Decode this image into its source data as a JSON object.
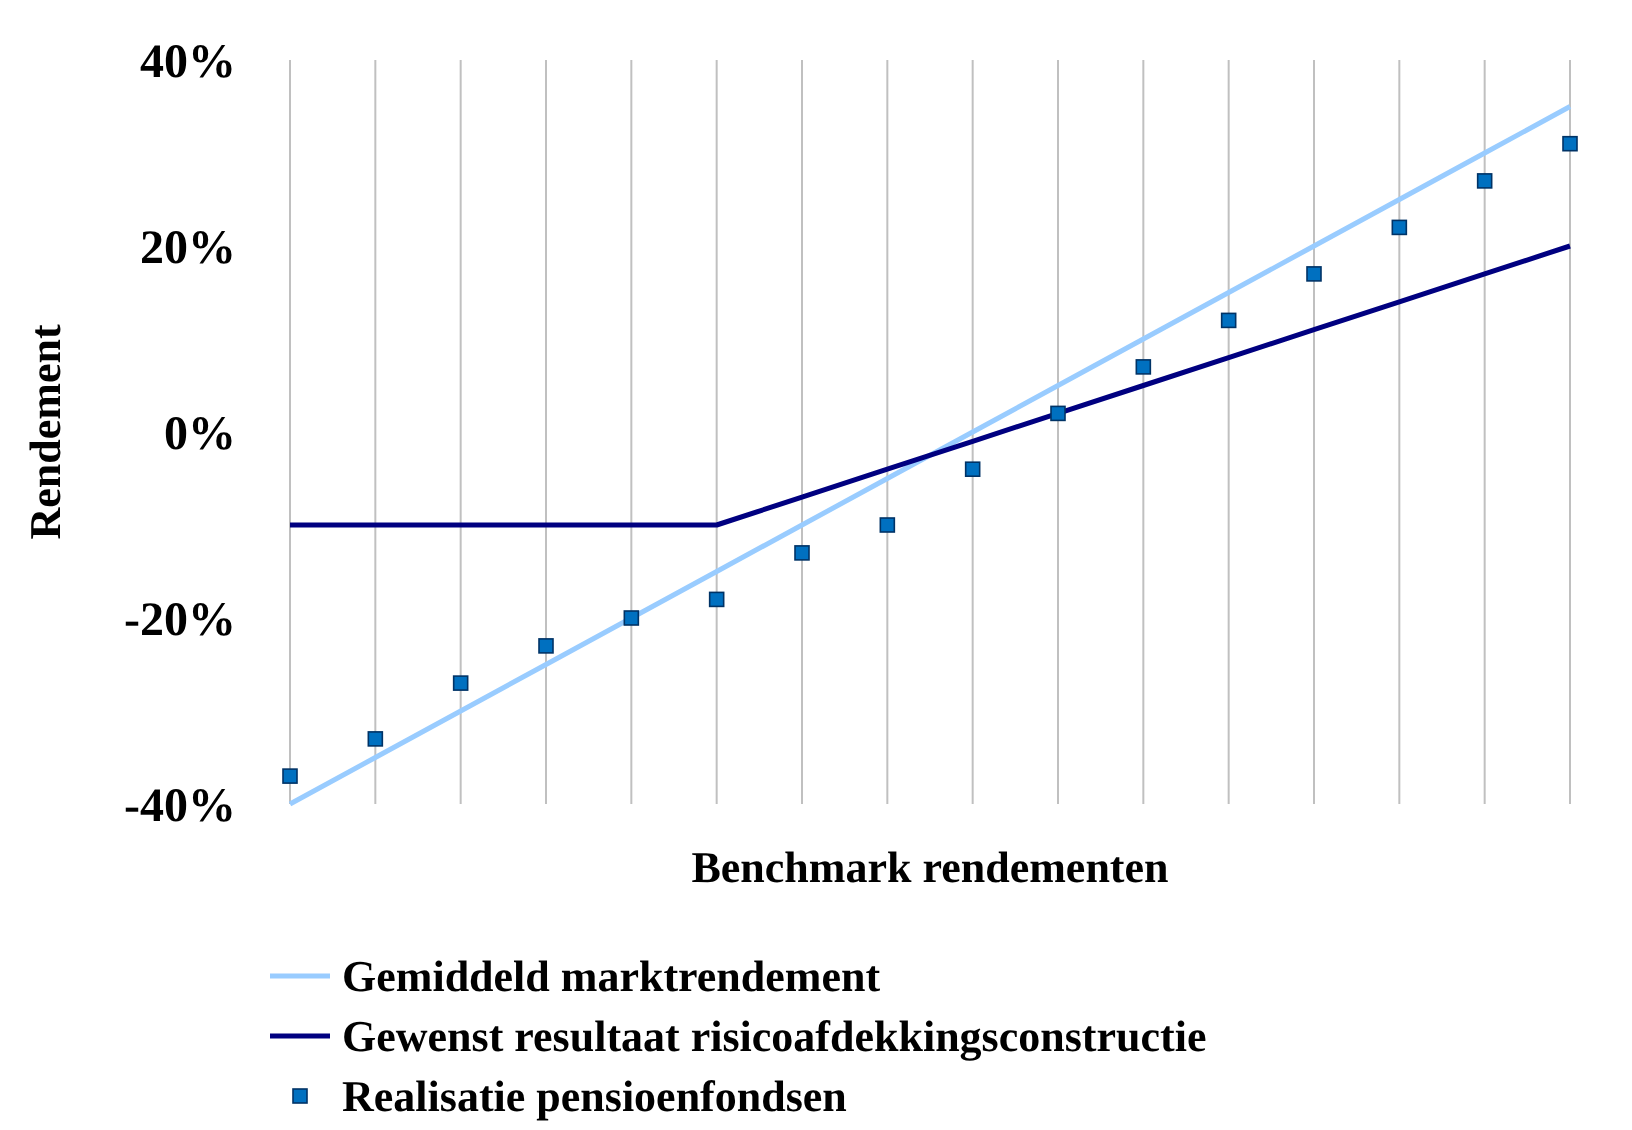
{
  "chart_data": {
    "type": "line",
    "xlabel": "Benchmark rendementen",
    "ylabel": "Rendement",
    "categories": [
      null,
      null,
      null,
      null,
      null,
      null,
      null,
      null,
      null,
      null,
      null,
      null,
      null,
      null,
      null,
      null
    ],
    "series": [
      {
        "name": "Gemiddeld marktrendement",
        "marker": "none",
        "color": "#99ccff",
        "values": [
          -40,
          -35,
          -30,
          -25,
          -20,
          -15,
          -10,
          -5,
          0,
          5,
          10,
          15,
          20,
          25,
          30,
          35
        ]
      },
      {
        "name": "Gewenst resultaat risicoafdekkingsconstructie",
        "marker": "none",
        "color": "#000080",
        "values": [
          -10,
          -10,
          -10,
          -10,
          -10,
          -10,
          -7,
          -4,
          -1,
          2,
          5,
          8,
          11,
          14,
          17,
          20
        ]
      },
      {
        "name": "Realisatie pensioenfondsen",
        "type": "scatter",
        "marker": "square",
        "color": "#0070c0",
        "values": [
          -37,
          -33,
          -27,
          -23,
          -20,
          -18,
          -13,
          -10,
          -4,
          2,
          7,
          12,
          17,
          22,
          27,
          31
        ]
      }
    ],
    "ylim": [
      -40,
      40
    ],
    "yticks": [
      {
        "value": -40,
        "label": "-40%"
      },
      {
        "value": -20,
        "label": "-20%"
      },
      {
        "value": 0,
        "label": "0%"
      },
      {
        "value": 20,
        "label": "20%"
      },
      {
        "value": 40,
        "label": "40%"
      }
    ],
    "grid": "x",
    "legend": "bottom",
    "line_style": "solid"
  }
}
